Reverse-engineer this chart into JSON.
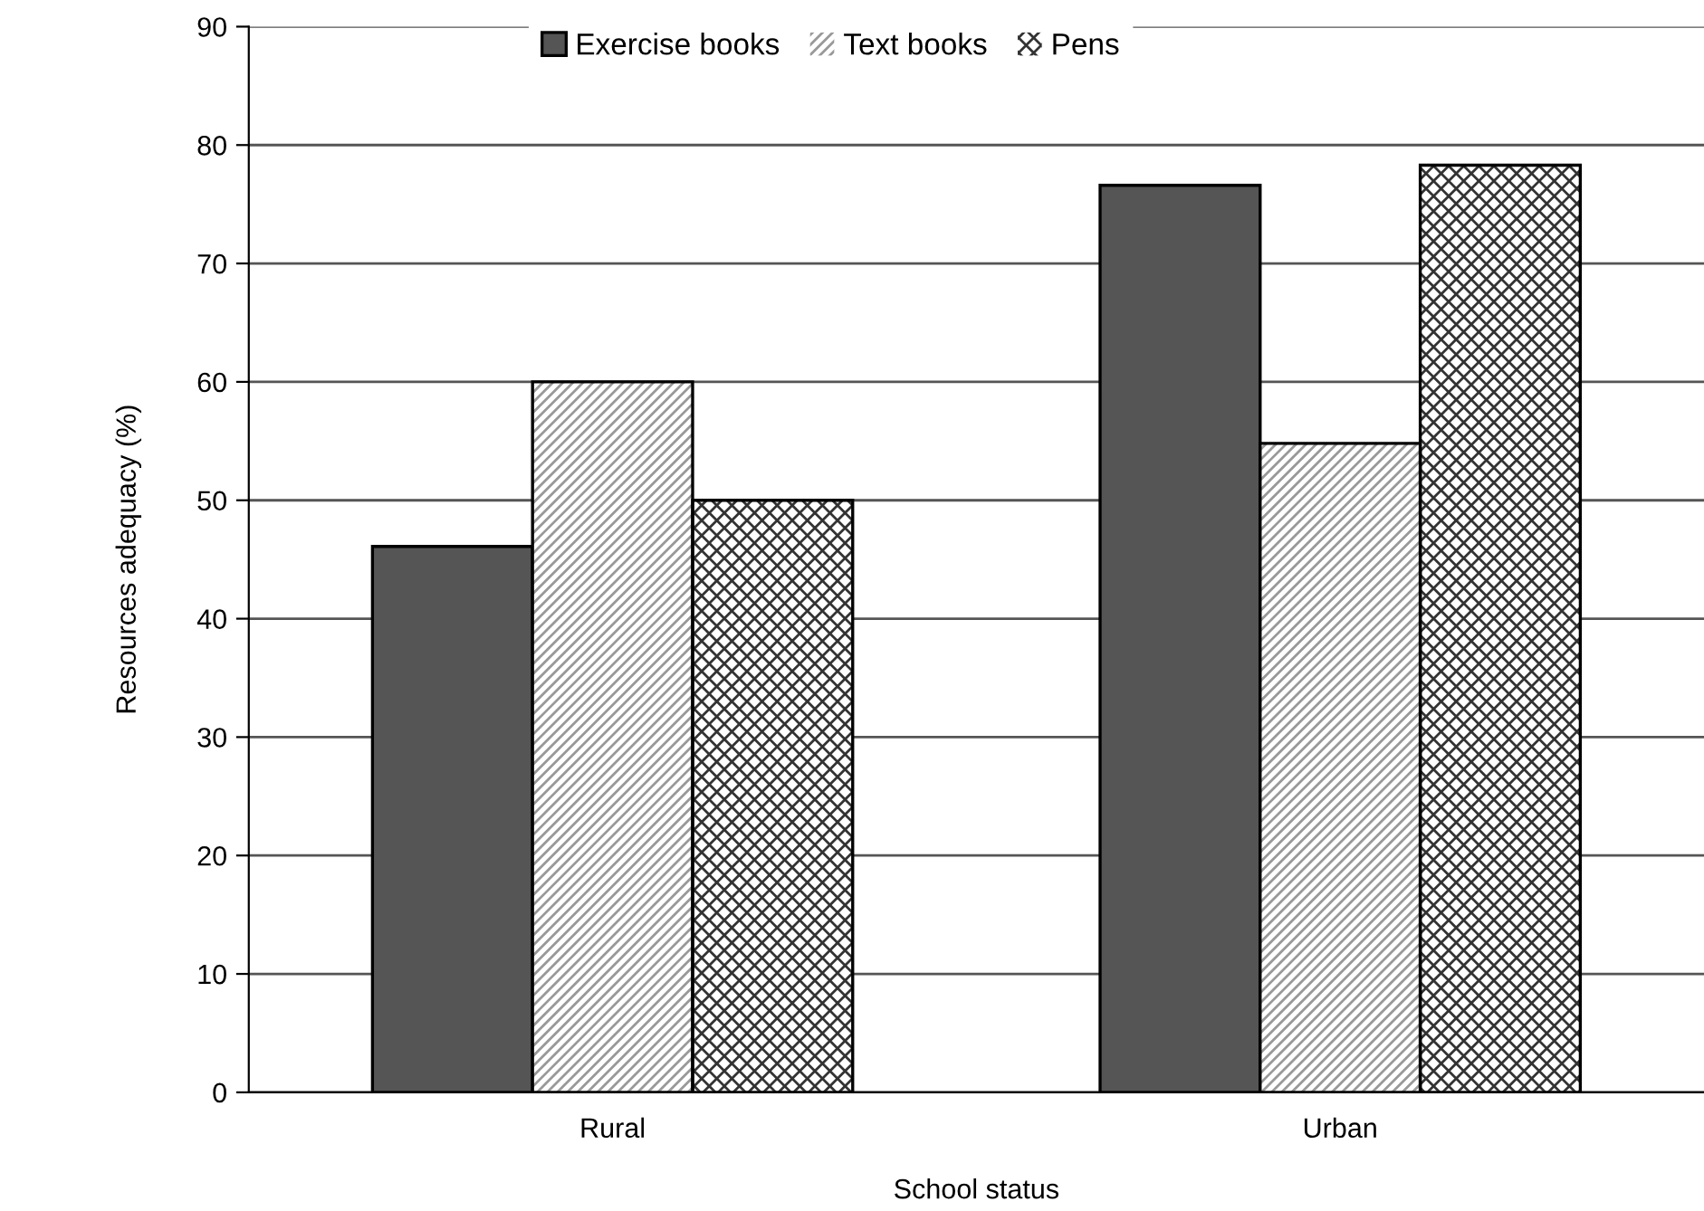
{
  "chart_data": {
    "type": "bar",
    "xlabel": "School status",
    "ylabel": "Resources adequacy (%)",
    "categories": [
      "Rural",
      "Urban"
    ],
    "series": [
      {
        "name": "Exercise books",
        "color": "#555555",
        "values": [
          46.1,
          76.6
        ]
      },
      {
        "name": "Text books",
        "color": "#999999",
        "values": [
          60,
          54.8
        ]
      },
      {
        "name": "Pens",
        "color": "#333333",
        "values": [
          50,
          78.3
        ]
      }
    ],
    "ylim": [
      0,
      90
    ],
    "yticks": [
      0,
      10,
      20,
      30,
      40,
      50,
      60,
      70,
      80,
      90
    ],
    "grid": "y",
    "legend": "top"
  }
}
